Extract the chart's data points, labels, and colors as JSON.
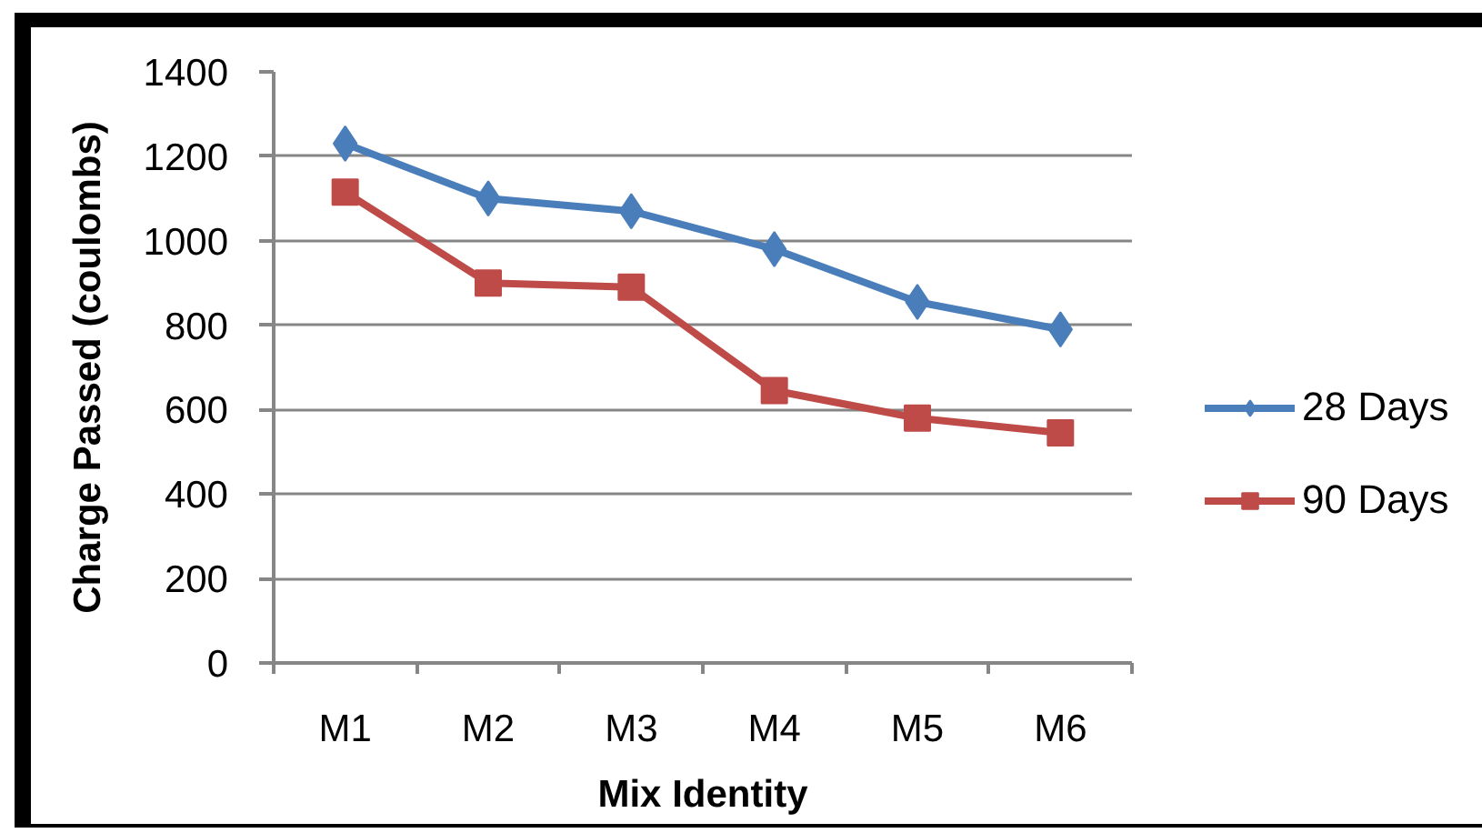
{
  "chart_data": {
    "type": "line",
    "xlabel": "Mix Identity",
    "ylabel": "Charge Passed (coulombs)",
    "categories": [
      "M1",
      "M2",
      "M3",
      "M4",
      "M5",
      "M6"
    ],
    "series": [
      {
        "name": "28 Days",
        "color": "#4a7ebb",
        "marker": "diamond",
        "values": [
          1230,
          1100,
          1070,
          980,
          855,
          790
        ]
      },
      {
        "name": "90 Days",
        "color": "#be4b48",
        "marker": "square",
        "values": [
          1115,
          900,
          890,
          645,
          580,
          545
        ]
      }
    ],
    "ylim": [
      0,
      1400
    ],
    "yticks": [
      0,
      200,
      400,
      600,
      800,
      1000,
      1200,
      1400
    ],
    "grid": "y",
    "legend": "right",
    "line_style": "solid"
  }
}
